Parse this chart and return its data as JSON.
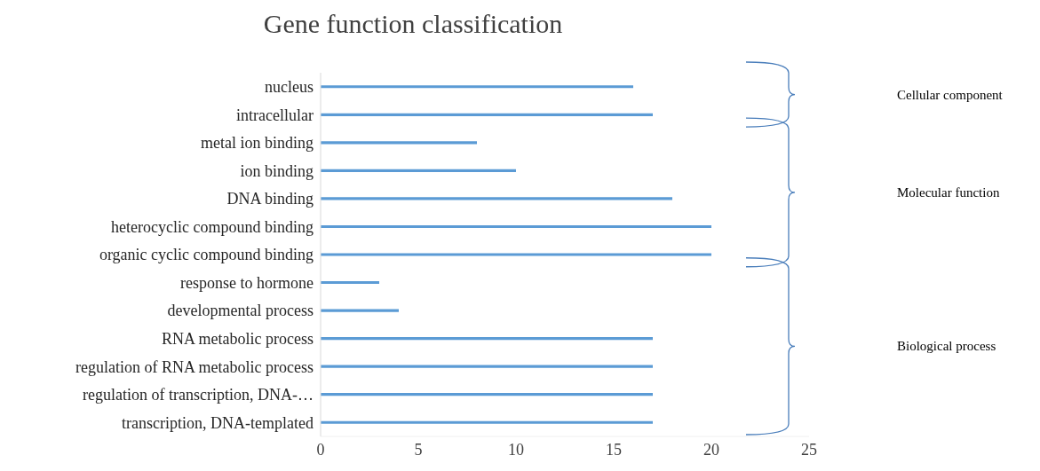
{
  "chart_data": {
    "type": "bar",
    "orientation": "horizontal",
    "title": "Gene function classification",
    "categories": [
      "nucleus",
      "intracellular",
      "metal ion binding",
      "ion binding",
      "DNA binding",
      "heterocyclic compound binding",
      "organic cyclic compound binding",
      "response to hormone",
      "developmental process",
      "RNA metabolic process",
      "regulation of RNA metabolic process",
      "regulation of transcription, DNA-…",
      "transcription, DNA-templated"
    ],
    "values": [
      16,
      17,
      8,
      10,
      18,
      20,
      20,
      3,
      4,
      17,
      17,
      17,
      17
    ],
    "color": "#5b9bd5",
    "xlim": [
      0,
      25
    ],
    "xticks": [
      0,
      5,
      10,
      15,
      20,
      25
    ],
    "grid": false,
    "annotations": [
      "Cellular component",
      "Molecular function",
      "Biological process"
    ]
  }
}
